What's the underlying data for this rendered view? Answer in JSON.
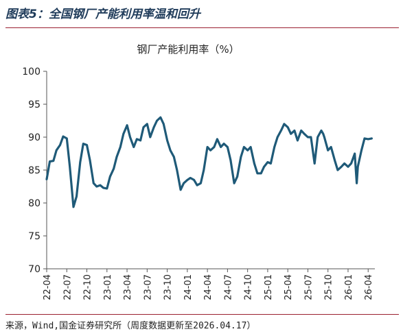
{
  "figure": {
    "title": "图表5：全国钢厂产能利用率温和回升",
    "source": "来源，Wind,国金证券研究所（周度数据更新至2026.04.17）"
  },
  "colors": {
    "line": "#1f5a78",
    "accent_rule": "#9a1f2f",
    "axis": "#555555"
  },
  "chart_data": {
    "type": "line",
    "title": "钢厂产能利用率（%）",
    "xlabel": "",
    "ylabel": "",
    "ylim": [
      70,
      100
    ],
    "yticks": [
      70,
      75,
      80,
      85,
      90,
      95,
      100
    ],
    "xlim": [
      "2022-04",
      "2026-05"
    ],
    "xtick_labels": [
      "22-04",
      "22-07",
      "22-10",
      "23-01",
      "23-04",
      "23-07",
      "23-10",
      "24-01",
      "24-04",
      "24-07",
      "24-10",
      "25-01",
      "25-04",
      "25-07",
      "25-10",
      "26-01",
      "26-04"
    ],
    "grid": false,
    "series": [
      {
        "name": "",
        "x": [
          "2022-04-01",
          "2022-04-15",
          "2022-05-01",
          "2022-05-15",
          "2022-06-01",
          "2022-06-15",
          "2022-07-01",
          "2022-07-15",
          "2022-08-01",
          "2022-08-15",
          "2022-09-01",
          "2022-09-15",
          "2022-10-01",
          "2022-10-15",
          "2022-11-01",
          "2022-11-15",
          "2022-12-01",
          "2022-12-15",
          "2023-01-01",
          "2023-01-15",
          "2023-02-01",
          "2023-02-15",
          "2023-03-01",
          "2023-03-15",
          "2023-04-01",
          "2023-04-15",
          "2023-05-01",
          "2023-05-15",
          "2023-06-01",
          "2023-06-15",
          "2023-07-01",
          "2023-07-15",
          "2023-08-01",
          "2023-08-15",
          "2023-09-01",
          "2023-09-15",
          "2023-10-01",
          "2023-10-15",
          "2023-11-01",
          "2023-11-15",
          "2023-12-01",
          "2023-12-15",
          "2024-01-01",
          "2024-01-15",
          "2024-02-01",
          "2024-02-15",
          "2024-03-01",
          "2024-03-15",
          "2024-04-01",
          "2024-04-15",
          "2024-05-01",
          "2024-05-15",
          "2024-06-01",
          "2024-06-15",
          "2024-07-01",
          "2024-07-15",
          "2024-08-01",
          "2024-08-15",
          "2024-09-01",
          "2024-09-15",
          "2024-10-01",
          "2024-10-15",
          "2024-11-01",
          "2024-11-15",
          "2024-12-01",
          "2024-12-15",
          "2025-01-01",
          "2025-01-15",
          "2025-02-01",
          "2025-02-15",
          "2025-03-01",
          "2025-03-15",
          "2025-04-01",
          "2025-04-15",
          "2025-05-01",
          "2025-05-15",
          "2025-06-01",
          "2025-06-15",
          "2025-07-01",
          "2025-07-15",
          "2025-08-01",
          "2025-08-15",
          "2025-09-01",
          "2025-09-10",
          "2025-09-15",
          "2025-10-01",
          "2025-10-15",
          "2025-11-01",
          "2025-11-15",
          "2025-12-01",
          "2025-12-15",
          "2026-01-01",
          "2026-01-15",
          "2026-02-01",
          "2026-02-10",
          "2026-02-15",
          "2026-03-01",
          "2026-03-15",
          "2026-04-01",
          "2026-04-17"
        ],
        "values": [
          83.6,
          86.3,
          86.4,
          88.0,
          88.8,
          90.1,
          89.8,
          85.5,
          79.4,
          81.0,
          86.2,
          89.0,
          88.8,
          86.5,
          83.0,
          82.5,
          82.7,
          82.3,
          82.2,
          84.0,
          85.2,
          87.0,
          88.5,
          90.5,
          91.8,
          90.0,
          88.5,
          89.7,
          89.5,
          91.5,
          92.0,
          90.0,
          91.5,
          92.5,
          93.0,
          92.0,
          89.5,
          88.0,
          87.0,
          85.0,
          82.0,
          83.0,
          83.5,
          83.8,
          83.5,
          82.7,
          83.0,
          85.0,
          88.5,
          88.0,
          88.5,
          89.7,
          88.5,
          89.0,
          88.5,
          86.5,
          83.0,
          84.0,
          87.0,
          88.5,
          88.0,
          88.5,
          86.0,
          84.5,
          84.5,
          85.5,
          86.2,
          86.0,
          88.5,
          90.0,
          91.0,
          92.0,
          91.5,
          90.5,
          91.0,
          89.5,
          91.0,
          90.5,
          90.0,
          90.0,
          86.0,
          90.0,
          91.0,
          90.5,
          90.0,
          88.0,
          88.5,
          86.5,
          85.0,
          85.5,
          86.0,
          85.5,
          86.0,
          87.5,
          83.0,
          85.5,
          88.0,
          89.8,
          89.7,
          89.8
        ]
      }
    ]
  }
}
